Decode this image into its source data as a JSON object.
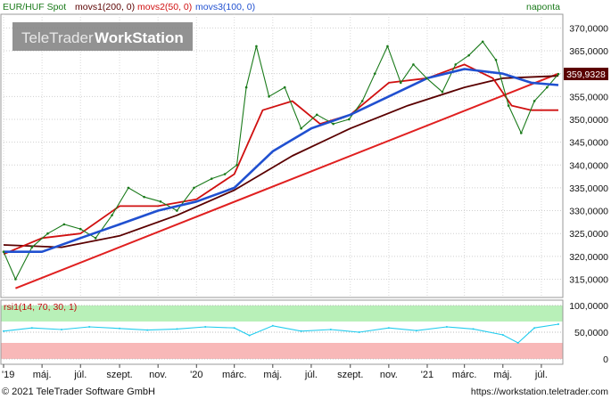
{
  "header": {
    "symbol": "EUR/HUF Spot",
    "movs1": "movs1(200, 0)",
    "movs2": "movs2(50, 0)",
    "movs3": "movs3(100, 0)",
    "period": "naponta",
    "watermark_left": "TeleTrader",
    "watermark_right": "WorkStation"
  },
  "footer": {
    "copyright": "© 2021 TeleTrader Software GmbH",
    "url": "https://workstation.teletrader.com"
  },
  "colors": {
    "price": "#1a7a1a",
    "movs1": "#5a0000",
    "movs2": "#d01010",
    "movs3": "#2050d0",
    "trendline": "#e02020",
    "rsi": "#22ccee",
    "rsi_upper_band": "#b8f0b8",
    "rsi_lower_band": "#f8b8b8",
    "label_box": "#5a0000"
  },
  "chart_data": [
    {
      "type": "line",
      "title": "EUR/HUF Spot",
      "ylim": [
        311,
        373
      ],
      "yticks": [
        315,
        320,
        325,
        330,
        335,
        340,
        345,
        350,
        355,
        360,
        365,
        370
      ],
      "ytick_labels": [
        "315,0000",
        "320,0000",
        "325,0000",
        "330,0000",
        "335,0000",
        "340,0000",
        "345,0000",
        "350,0000",
        "355,0000",
        "360,0000",
        "365,0000",
        "370,0000"
      ],
      "last_value_label": "359,9328",
      "last_value": 359.93,
      "x_labels": [
        "'19",
        "máj.",
        "júl.",
        "szept.",
        "nov.",
        "'20",
        "márc.",
        "máj.",
        "júl.",
        "szept.",
        "nov.",
        "'21",
        "márc.",
        "máj.",
        "júl."
      ],
      "x_dates": [
        "2019-03-01",
        "2019-05-01",
        "2019-07-01",
        "2019-09-01",
        "2019-11-01",
        "2020-01-01",
        "2020-03-01",
        "2020-05-01",
        "2020-07-01",
        "2020-09-01",
        "2020-11-01",
        "2021-01-01",
        "2021-03-01",
        "2021-05-01",
        "2021-07-01"
      ],
      "series": [
        {
          "name": "EUR/HUF Spot",
          "x": [
            "2019-03-01",
            "2019-03-20",
            "2019-04-15",
            "2019-05-10",
            "2019-06-05",
            "2019-07-01",
            "2019-07-25",
            "2019-08-20",
            "2019-09-15",
            "2019-10-10",
            "2019-11-05",
            "2019-12-01",
            "2019-12-28",
            "2020-01-25",
            "2020-02-15",
            "2020-03-05",
            "2020-03-20",
            "2020-04-05",
            "2020-04-25",
            "2020-05-20",
            "2020-06-15",
            "2020-07-10",
            "2020-08-05",
            "2020-08-30",
            "2020-09-20",
            "2020-10-10",
            "2020-10-30",
            "2020-11-20",
            "2020-12-10",
            "2020-12-31",
            "2021-01-25",
            "2021-02-15",
            "2021-03-08",
            "2021-03-30",
            "2021-04-20",
            "2021-05-10",
            "2021-05-30",
            "2021-06-20",
            "2021-07-10",
            "2021-07-28"
          ],
          "values": [
            321.0,
            315.0,
            322.0,
            325.0,
            327.0,
            326.0,
            324.0,
            329.0,
            335.0,
            333.0,
            332.0,
            330.0,
            335.0,
            337.0,
            338.0,
            340.0,
            357.0,
            366.0,
            355.0,
            357.0,
            348.0,
            351.0,
            349.0,
            350.0,
            354.0,
            360.0,
            366.0,
            358.0,
            362.0,
            359.0,
            356.0,
            362.0,
            364.0,
            367.0,
            363.0,
            353.0,
            347.0,
            354.0,
            357.0,
            359.9
          ]
        },
        {
          "name": "movs1(200, 0)",
          "x": [
            "2019-03-01",
            "2019-06-01",
            "2019-09-01",
            "2019-12-01",
            "2020-03-01",
            "2020-06-01",
            "2020-09-01",
            "2020-12-01",
            "2021-03-01",
            "2021-05-01",
            "2021-07-28"
          ],
          "values": [
            322.5,
            322.0,
            324.5,
            329.0,
            334.5,
            342.0,
            348.0,
            353.0,
            357.0,
            359.0,
            359.5
          ]
        },
        {
          "name": "movs2(50, 0)",
          "x": [
            "2019-03-01",
            "2019-05-01",
            "2019-07-01",
            "2019-09-01",
            "2019-11-01",
            "2020-01-01",
            "2020-03-01",
            "2020-04-15",
            "2020-06-01",
            "2020-07-15",
            "2020-09-01",
            "2020-11-01",
            "2021-01-01",
            "2021-03-01",
            "2021-04-15",
            "2021-05-15",
            "2021-06-15",
            "2021-07-28"
          ],
          "values": [
            320.5,
            324.0,
            325.0,
            331.0,
            331.0,
            332.5,
            338.0,
            352.0,
            354.0,
            349.0,
            351.0,
            358.0,
            359.0,
            362.0,
            359.0,
            353.0,
            352.0,
            352.0
          ]
        },
        {
          "name": "movs3(100, 0)",
          "x": [
            "2019-03-01",
            "2019-05-01",
            "2019-07-01",
            "2019-09-01",
            "2019-11-01",
            "2020-01-01",
            "2020-03-01",
            "2020-05-01",
            "2020-07-01",
            "2020-09-01",
            "2020-11-01",
            "2021-01-01",
            "2021-03-01",
            "2021-05-01",
            "2021-06-15",
            "2021-07-28"
          ],
          "values": [
            321.0,
            321.0,
            324.0,
            327.0,
            330.0,
            332.0,
            335.0,
            343.0,
            348.0,
            351.0,
            355.0,
            359.0,
            361.0,
            360.0,
            358.0,
            357.5
          ]
        },
        {
          "name": "trendline",
          "x": [
            "2019-03-20",
            "2021-07-28"
          ],
          "values": [
            313.0,
            360.0
          ]
        }
      ]
    },
    {
      "type": "line",
      "title": "rsi1(14, 70, 30, 1)",
      "ylim": [
        -10,
        110
      ],
      "yticks": [
        0,
        50,
        100
      ],
      "ytick_labels": [
        "0",
        "50,0000",
        "100,0000"
      ],
      "bands": {
        "upper": [
          70,
          100
        ],
        "lower": [
          0,
          30
        ]
      },
      "series": [
        {
          "name": "rsi1(14, 70, 30, 1)",
          "x": [
            "2019-03-01",
            "2019-04-15",
            "2019-06-01",
            "2019-07-15",
            "2019-09-01",
            "2019-10-15",
            "2019-12-01",
            "2020-01-15",
            "2020-03-01",
            "2020-03-25",
            "2020-05-01",
            "2020-06-15",
            "2020-08-01",
            "2020-09-15",
            "2020-11-01",
            "2020-12-15",
            "2021-02-01",
            "2021-03-15",
            "2021-05-01",
            "2021-05-25",
            "2021-06-20",
            "2021-07-28"
          ],
          "values": [
            52,
            58,
            55,
            60,
            57,
            54,
            56,
            60,
            58,
            44,
            62,
            52,
            55,
            50,
            58,
            53,
            60,
            56,
            45,
            30,
            58,
            65
          ]
        }
      ]
    }
  ]
}
